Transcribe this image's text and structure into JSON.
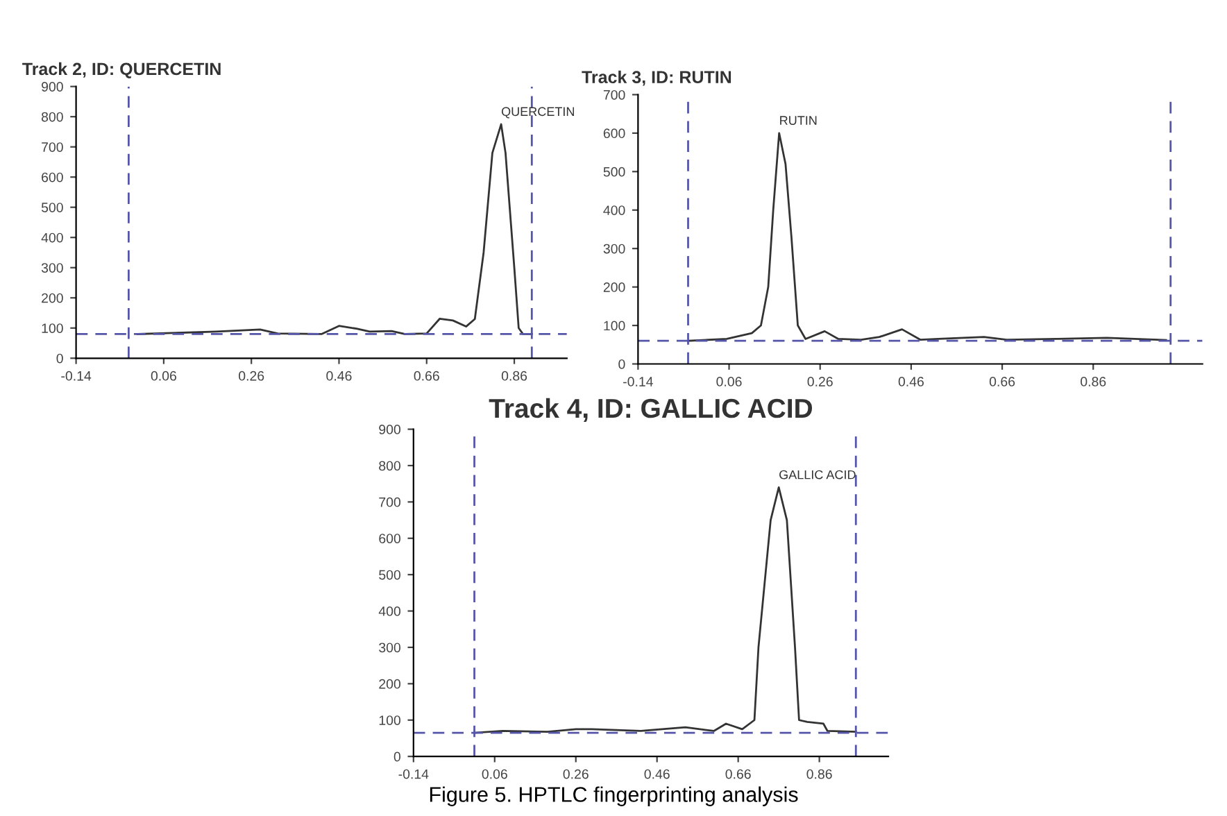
{
  "chart_data": [
    {
      "type": "line",
      "title": "Track 2, ID: QUERCETIN",
      "xlim": [
        -0.14,
        0.98
      ],
      "xticks": [
        -0.14,
        0.06,
        0.26,
        0.46,
        0.66,
        0.86
      ],
      "ylim": [
        0,
        900
      ],
      "yticks": [
        0,
        100,
        200,
        300,
        400,
        500,
        600,
        700,
        800,
        900
      ],
      "series": [
        {
          "color": "#333333",
          "x": [
            0.0,
            0.18,
            0.28,
            0.32,
            0.42,
            0.46,
            0.5,
            0.53,
            0.58,
            0.61,
            0.66,
            0.69,
            0.72,
            0.75,
            0.77,
            0.79,
            0.81,
            0.83,
            0.84,
            0.86,
            0.87,
            0.88,
            0.9
          ],
          "values": [
            80,
            88,
            95,
            82,
            80,
            107,
            98,
            88,
            90,
            80,
            82,
            131,
            125,
            105,
            130,
            350,
            680,
            775,
            680,
            300,
            100,
            80,
            80
          ]
        }
      ],
      "ref_lines": [
        {
          "axis": "x",
          "value": -0.02,
          "color": "#5555aa",
          "line_style": "dashed"
        },
        {
          "axis": "x",
          "value": 0.9,
          "color": "#5555aa",
          "line_style": "dashed"
        },
        {
          "axis": "y",
          "value": 80,
          "color": "#5555aa",
          "line_style": "dashed"
        }
      ],
      "annotations": [
        {
          "text": "QUERCETIN",
          "x": 0.83,
          "y": 775
        }
      ]
    },
    {
      "type": "line",
      "title": "Track 3, ID: RUTIN",
      "xlim": [
        -0.14,
        1.1
      ],
      "xticks": [
        -0.14,
        0.06,
        0.26,
        0.46,
        0.66,
        0.86
      ],
      "ylim": [
        0,
        700
      ],
      "yticks": [
        0,
        100,
        200,
        300,
        400,
        500,
        600,
        700
      ],
      "series": [
        {
          "color": "#333333",
          "x": [
            -0.03,
            0.055,
            0.11,
            0.13,
            0.146,
            0.157,
            0.17,
            0.184,
            0.197,
            0.211,
            0.228,
            0.27,
            0.3,
            0.35,
            0.39,
            0.44,
            0.48,
            0.52,
            0.62,
            0.67,
            0.78,
            0.89,
            1.02
          ],
          "values": [
            60,
            65,
            80,
            100,
            200,
            400,
            600,
            520,
            330,
            100,
            65,
            85,
            65,
            63,
            70,
            90,
            63,
            65,
            70,
            63,
            65,
            68,
            62
          ]
        }
      ],
      "ref_lines": [
        {
          "axis": "x",
          "value": -0.03,
          "color": "#5555aa",
          "line_style": "dashed"
        },
        {
          "axis": "x",
          "value": 1.03,
          "color": "#5555aa",
          "line_style": "dashed"
        },
        {
          "axis": "y",
          "value": 60,
          "color": "#5555aa",
          "line_style": "dashed"
        }
      ],
      "annotations": [
        {
          "text": "RUTIN",
          "x": 0.17,
          "y": 600
        }
      ]
    },
    {
      "type": "line",
      "title": "Track 4, ID: GALLIC ACID",
      "xlim": [
        -0.14,
        1.03
      ],
      "xticks": [
        -0.14,
        0.06,
        0.26,
        0.46,
        0.66,
        0.86
      ],
      "ylim": [
        0,
        900
      ],
      "yticks": [
        0,
        100,
        200,
        300,
        400,
        500,
        600,
        700,
        800,
        900
      ],
      "series": [
        {
          "color": "#333333",
          "x": [
            0.01,
            0.08,
            0.19,
            0.26,
            0.3,
            0.42,
            0.53,
            0.6,
            0.63,
            0.67,
            0.7,
            0.71,
            0.74,
            0.76,
            0.78,
            0.8,
            0.81,
            0.83,
            0.87,
            0.88,
            0.95
          ],
          "values": [
            65,
            70,
            68,
            75,
            75,
            70,
            80,
            70,
            90,
            75,
            100,
            300,
            650,
            740,
            650,
            300,
            100,
            95,
            90,
            70,
            68
          ]
        }
      ],
      "ref_lines": [
        {
          "axis": "x",
          "value": 0.01,
          "color": "#5555aa",
          "line_style": "dashed"
        },
        {
          "axis": "x",
          "value": 0.95,
          "color": "#5555aa",
          "line_style": "dashed"
        },
        {
          "axis": "y",
          "value": 65,
          "color": "#5555aa",
          "line_style": "dashed"
        }
      ],
      "annotations": [
        {
          "text": "GALLIC ACID",
          "x": 0.76,
          "y": 740
        },
        "Figure 5. HPTLC fingerprinting analysis"
      ]
    }
  ]
}
